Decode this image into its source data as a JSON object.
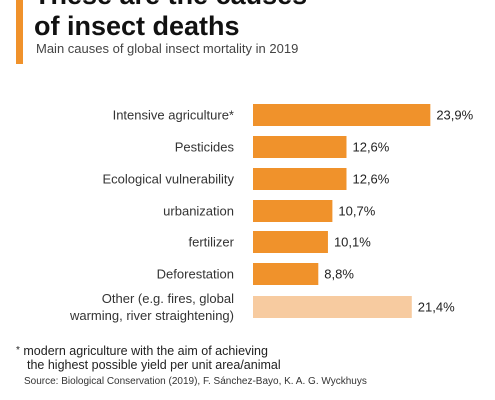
{
  "header": {
    "title_line1": "These are the causes",
    "title_line2": "of insect deaths",
    "subtitle": "Main causes of global insect mortality in 2019"
  },
  "colors": {
    "accent": "#f0922b",
    "bar_primary": "#f0922b",
    "bar_other": "#f7cba0"
  },
  "chart_data": {
    "type": "bar",
    "orientation": "horizontal",
    "categories": [
      [
        "Intensive agriculture*"
      ],
      [
        "Pesticides"
      ],
      [
        "Ecological vulnerability"
      ],
      [
        "urbanization"
      ],
      [
        "fertilizer"
      ],
      [
        "Deforestation"
      ],
      [
        "Other (e.g. fires, global",
        "warming, river straightening)"
      ]
    ],
    "values": [
      23.9,
      12.6,
      12.6,
      10.7,
      10.1,
      8.8,
      21.4
    ],
    "value_labels": [
      "23,9%",
      "12,6%",
      "12,6%",
      "10,7%",
      "10,1%",
      "8,8%",
      "21,4%"
    ],
    "unit": "%",
    "highlight_last_as_other": true
  },
  "footnote": {
    "marker": "*",
    "line1": "modern agriculture with the aim of achieving",
    "line2": "the highest possible yield per unit area/animal"
  },
  "source": "Source: Biological Conservation (2019), F. Sánchez-Bayo, K. A. G. Wyckhuys"
}
